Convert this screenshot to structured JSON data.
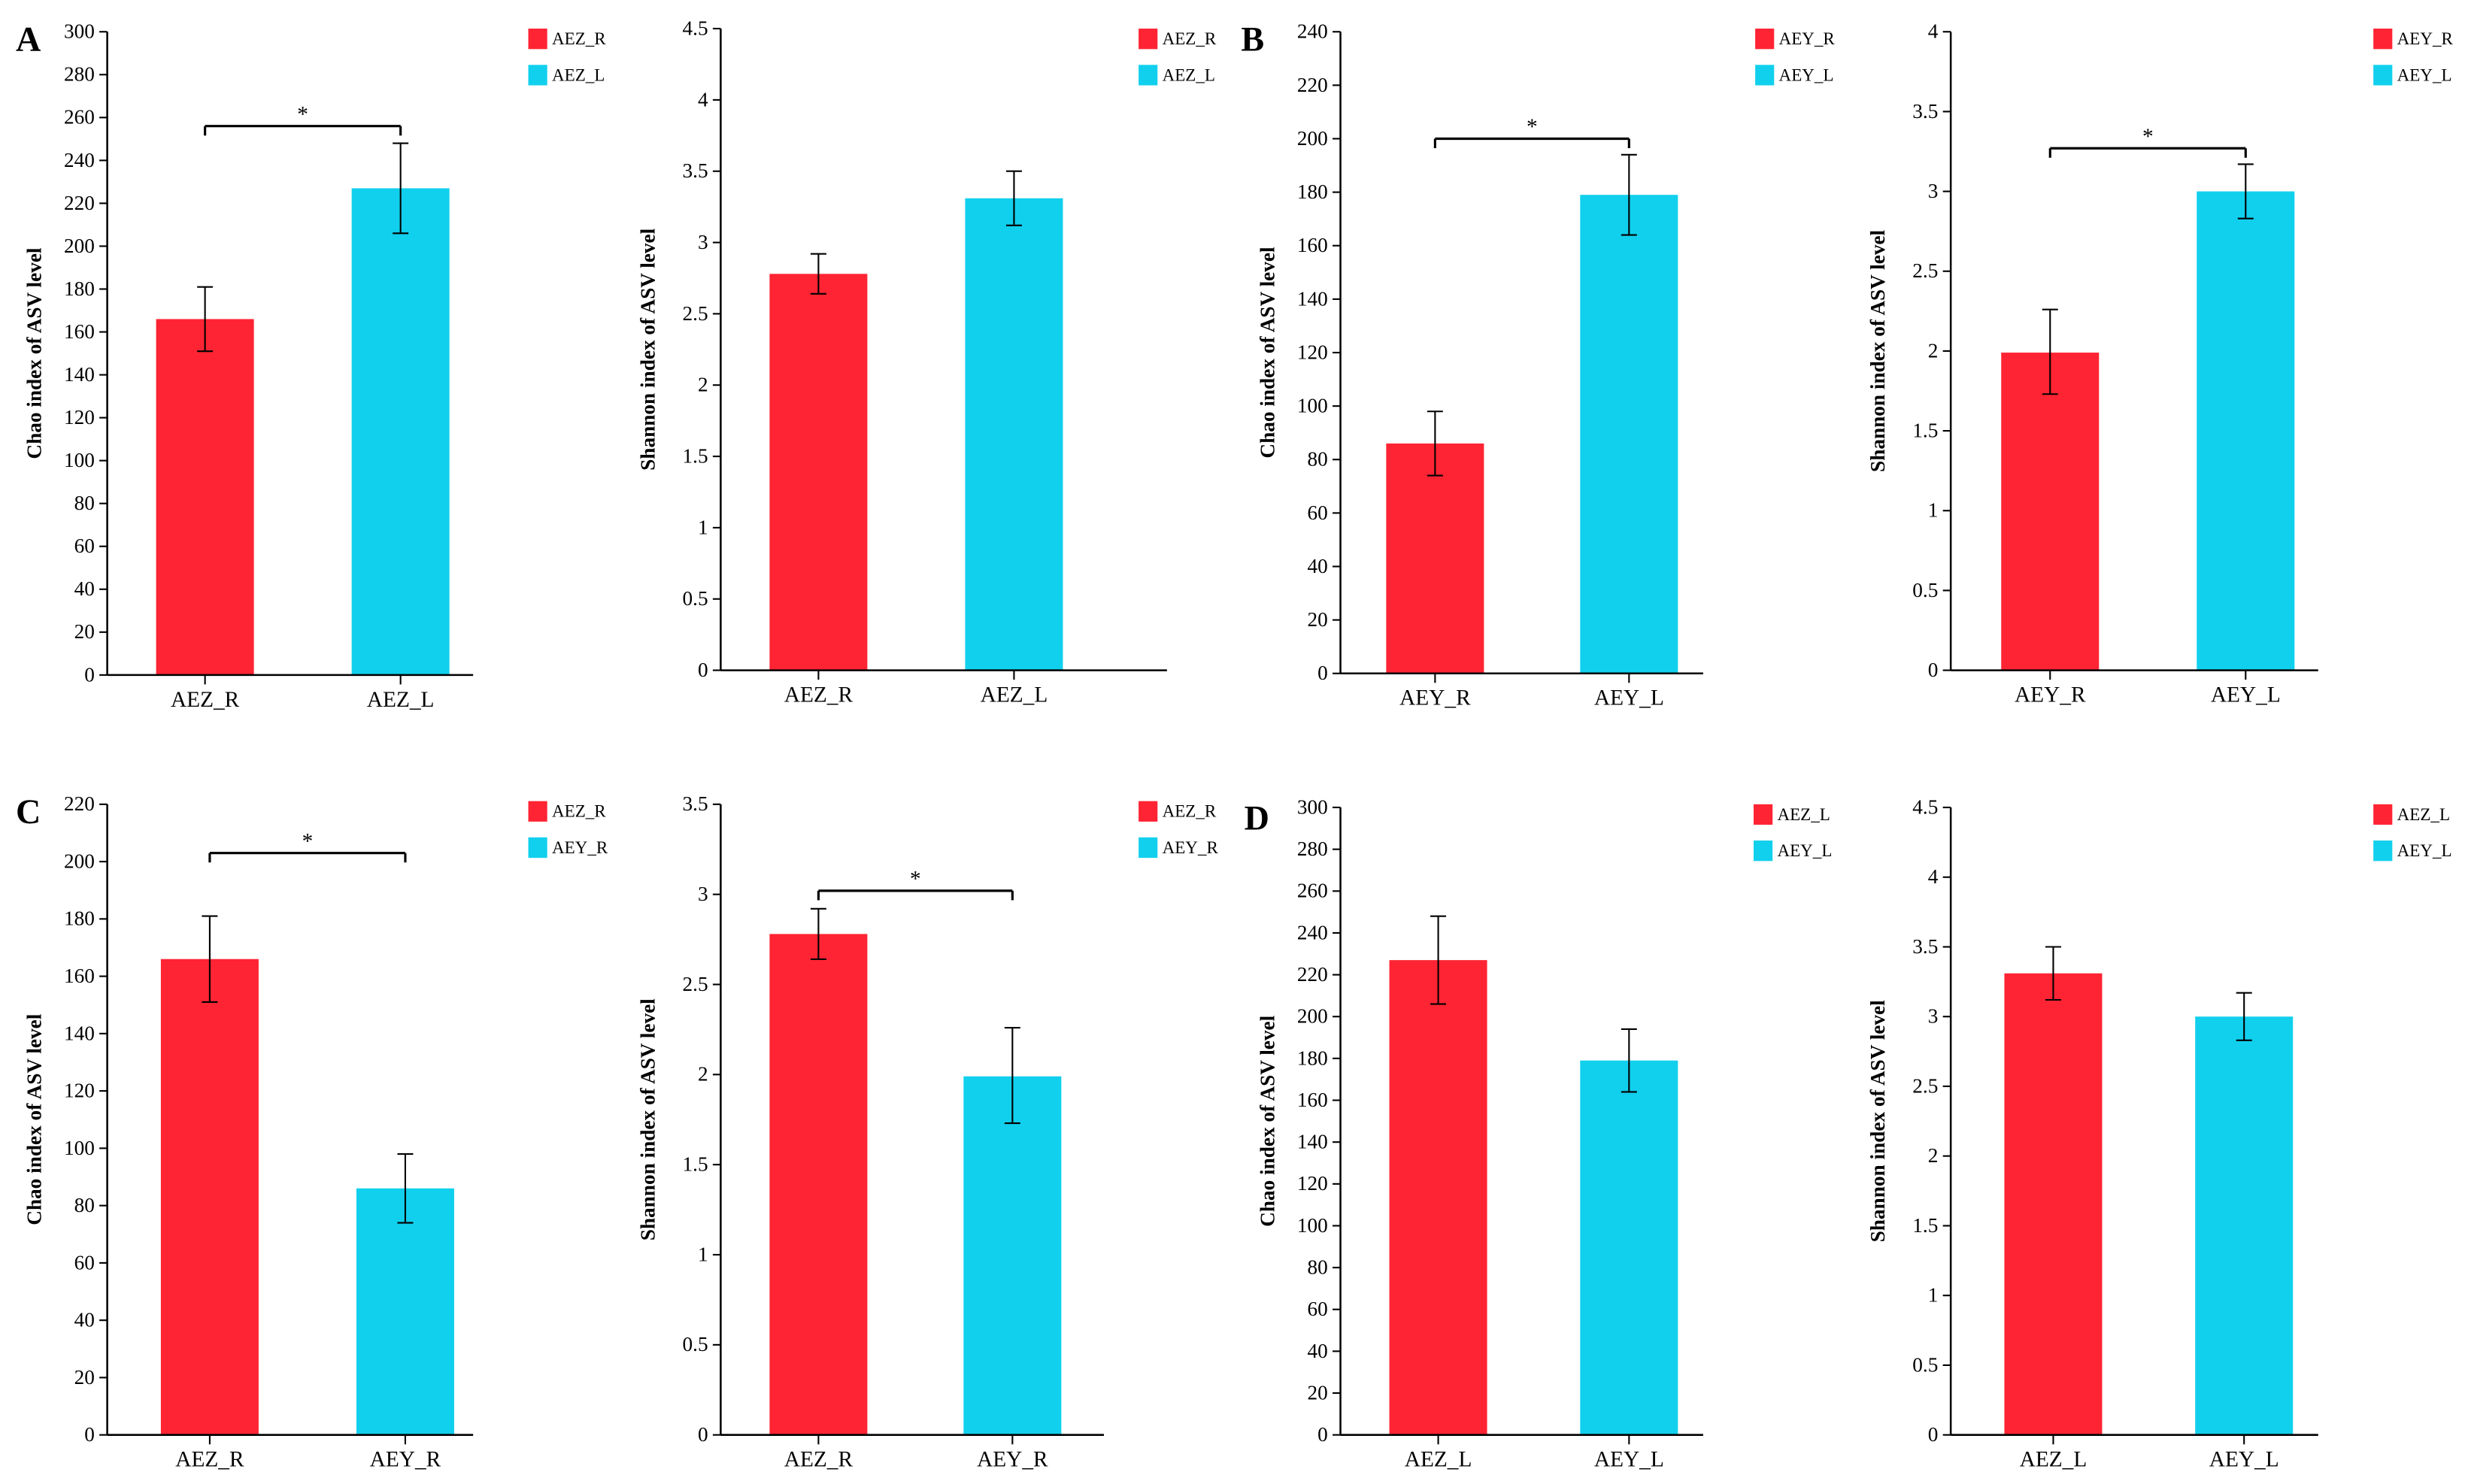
{
  "colors": {
    "red": "#FF2433",
    "cyan": "#11D0ED"
  },
  "chart_data": [
    {
      "panel": "A",
      "type": "bar",
      "ylabel": "Chao index of ASV level",
      "categories": [
        "AEZ_R",
        "AEZ_L"
      ],
      "values": [
        166,
        227
      ],
      "errors": [
        [
          151,
          181
        ],
        [
          206,
          248
        ]
      ],
      "ylim": [
        0,
        300
      ],
      "ystep": 20,
      "ticks": [
        "0",
        "20",
        "40",
        "60",
        "80",
        "100",
        "120",
        "140",
        "160",
        "180",
        "200",
        "220",
        "240",
        "260",
        "280",
        "300"
      ],
      "legend": [
        "AEZ_R",
        "AEZ_L"
      ],
      "significance": {
        "label": "*",
        "level": 256
      }
    },
    {
      "panel": "",
      "type": "bar",
      "ylabel": "Shannon index of ASV level",
      "categories": [
        "AEZ_R",
        "AEZ_L"
      ],
      "values": [
        2.78,
        3.31
      ],
      "errors": [
        [
          2.64,
          2.92
        ],
        [
          3.12,
          3.5
        ]
      ],
      "ylim": [
        0,
        4.5
      ],
      "ystep": 0.5,
      "ticks": [
        "0",
        "0.5",
        "1",
        "1.5",
        "2",
        "2.5",
        "3",
        "3.5",
        "4",
        "4.5"
      ],
      "legend": [
        "AEZ_R",
        "AEZ_L"
      ],
      "significance": null
    },
    {
      "panel": "B",
      "type": "bar",
      "ylabel": "Chao index of ASV level",
      "categories": [
        "AEY_R",
        "AEY_L"
      ],
      "values": [
        86,
        179
      ],
      "errors": [
        [
          74,
          98
        ],
        [
          164,
          194
        ]
      ],
      "ylim": [
        0,
        240
      ],
      "ystep": 20,
      "ticks": [
        "0",
        "20",
        "40",
        "60",
        "80",
        "100",
        "120",
        "140",
        "160",
        "180",
        "200",
        "220",
        "240"
      ],
      "legend": [
        "AEY_R",
        "AEY_L"
      ],
      "significance": {
        "label": "*",
        "level": 200
      }
    },
    {
      "panel": "",
      "type": "bar",
      "ylabel": "Shannon index of ASV level",
      "categories": [
        "AEY_R",
        "AEY_L"
      ],
      "values": [
        1.99,
        3.0
      ],
      "errors": [
        [
          1.73,
          2.26
        ],
        [
          2.83,
          3.17
        ]
      ],
      "ylim": [
        0,
        4
      ],
      "ystep": 0.5,
      "ticks": [
        "0",
        "0.5",
        "1",
        "1.5",
        "2",
        "2.5",
        "3",
        "3.5",
        "4"
      ],
      "legend": [
        "AEY_R",
        "AEY_L"
      ],
      "significance": {
        "label": "*",
        "level": 3.27
      }
    },
    {
      "panel": "C",
      "type": "bar",
      "ylabel": "Chao index of ASV level",
      "categories": [
        "AEZ_R",
        "AEY_R"
      ],
      "values": [
        166,
        86
      ],
      "errors": [
        [
          151,
          181
        ],
        [
          74,
          98
        ]
      ],
      "ylim": [
        0,
        220
      ],
      "ystep": 20,
      "ticks": [
        "0",
        "20",
        "40",
        "60",
        "80",
        "100",
        "120",
        "140",
        "160",
        "180",
        "200",
        "220"
      ],
      "legend": [
        "AEZ_R",
        "AEY_R"
      ],
      "significance": {
        "label": "*",
        "level": 203
      }
    },
    {
      "panel": "",
      "type": "bar",
      "ylabel": "Shannon index of ASV level",
      "categories": [
        "AEZ_R",
        "AEY_R"
      ],
      "values": [
        2.78,
        1.99
      ],
      "errors": [
        [
          2.64,
          2.92
        ],
        [
          1.73,
          2.26
        ]
      ],
      "ylim": [
        0,
        3.5
      ],
      "ystep": 0.5,
      "ticks": [
        "0",
        "0.5",
        "1",
        "1.5",
        "2",
        "2.5",
        "3",
        "3.5"
      ],
      "legend": [
        "AEZ_R",
        "AEY_R"
      ],
      "significance": {
        "label": "*",
        "level": 3.02
      }
    },
    {
      "panel": "D",
      "type": "bar",
      "ylabel": "Chao index of ASV level",
      "categories": [
        "AEZ_L",
        "AEY_L"
      ],
      "values": [
        227,
        179
      ],
      "errors": [
        [
          206,
          248
        ],
        [
          164,
          194
        ]
      ],
      "ylim": [
        0,
        300
      ],
      "ystep": 20,
      "ticks": [
        "0",
        "20",
        "40",
        "60",
        "80",
        "100",
        "120",
        "140",
        "160",
        "180",
        "200",
        "220",
        "240",
        "260",
        "280",
        "300"
      ],
      "legend": [
        "AEZ_L",
        "AEY_L"
      ],
      "significance": null
    },
    {
      "panel": "",
      "type": "bar",
      "ylabel": "Shannon index of ASV level",
      "categories": [
        "AEZ_L",
        "AEY_L"
      ],
      "values": [
        3.31,
        3.0
      ],
      "errors": [
        [
          3.12,
          3.5
        ],
        [
          2.83,
          3.17
        ]
      ],
      "ylim": [
        0,
        4.5
      ],
      "ystep": 0.5,
      "ticks": [
        "0",
        "0.5",
        "1",
        "1.5",
        "2",
        "2.5",
        "3",
        "3.5",
        "4",
        "4.5"
      ],
      "legend": [
        "AEZ_L",
        "AEY_L"
      ],
      "significance": null
    }
  ]
}
